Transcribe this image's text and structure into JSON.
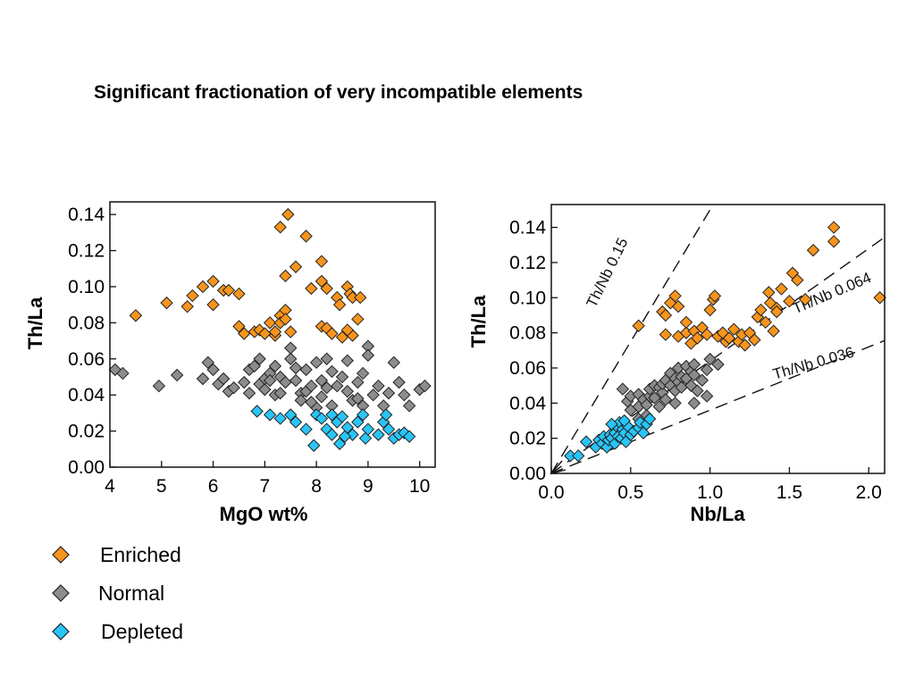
{
  "slide": {
    "title": "Significant fractionation of very incompatible elements"
  },
  "legend": [
    {
      "label": "Enriched",
      "color": "#f7941d"
    },
    {
      "label": "Normal",
      "color": "#8c8c8c"
    },
    {
      "label": "Depleted",
      "color": "#29c5f6"
    }
  ],
  "colors": {
    "Enriched": "#f7941d",
    "Normal": "#8c8c8c",
    "Depleted": "#29c5f6",
    "marker_stroke": "#222222"
  },
  "chart_data": [
    {
      "type": "scatter",
      "title": "",
      "xlabel": "MgO wt%",
      "ylabel": "Th/La",
      "xlim": [
        4,
        10.3
      ],
      "ylim": [
        0.0,
        0.147
      ],
      "xticks": [
        "4",
        "5",
        "6",
        "7",
        "8",
        "9",
        "10"
      ],
      "yticks": [
        "0.00",
        "0.02",
        "0.04",
        "0.06",
        "0.08",
        "0.10",
        "0.12",
        "0.14"
      ],
      "grid": false,
      "series": [
        {
          "name": "Enriched",
          "points": [
            [
              4.5,
              0.084
            ],
            [
              5.1,
              0.091
            ],
            [
              5.5,
              0.089
            ],
            [
              5.6,
              0.095
            ],
            [
              5.8,
              0.1
            ],
            [
              6.0,
              0.103
            ],
            [
              6.0,
              0.09
            ],
            [
              6.2,
              0.098
            ],
            [
              6.3,
              0.098
            ],
            [
              6.5,
              0.096
            ],
            [
              6.5,
              0.078
            ],
            [
              6.6,
              0.074
            ],
            [
              6.8,
              0.075
            ],
            [
              6.9,
              0.076
            ],
            [
              7.0,
              0.074
            ],
            [
              7.1,
              0.08
            ],
            [
              7.2,
              0.073
            ],
            [
              7.2,
              0.075
            ],
            [
              7.3,
              0.084
            ],
            [
              7.3,
              0.08
            ],
            [
              7.4,
              0.087
            ],
            [
              7.4,
              0.082
            ],
            [
              7.5,
              0.075
            ],
            [
              7.4,
              0.106
            ],
            [
              7.6,
              0.111
            ],
            [
              7.3,
              0.133
            ],
            [
              7.45,
              0.14
            ],
            [
              7.8,
              0.128
            ],
            [
              7.9,
              0.099
            ],
            [
              8.1,
              0.114
            ],
            [
              8.1,
              0.103
            ],
            [
              8.2,
              0.099
            ],
            [
              8.1,
              0.078
            ],
            [
              8.2,
              0.077
            ],
            [
              8.3,
              0.074
            ],
            [
              8.4,
              0.094
            ],
            [
              8.45,
              0.09
            ],
            [
              8.5,
              0.072
            ],
            [
              8.6,
              0.1
            ],
            [
              8.65,
              0.096
            ],
            [
              8.7,
              0.094
            ],
            [
              8.7,
              0.073
            ],
            [
              8.8,
              0.082
            ],
            [
              8.85,
              0.094
            ],
            [
              8.6,
              0.076
            ]
          ]
        },
        {
          "name": "Normal",
          "points": [
            [
              4.1,
              0.054
            ],
            [
              4.25,
              0.052
            ],
            [
              4.95,
              0.045
            ],
            [
              5.3,
              0.051
            ],
            [
              5.9,
              0.058
            ],
            [
              5.8,
              0.049
            ],
            [
              6.0,
              0.054
            ],
            [
              6.1,
              0.046
            ],
            [
              6.2,
              0.049
            ],
            [
              6.3,
              0.042
            ],
            [
              6.4,
              0.044
            ],
            [
              6.6,
              0.047
            ],
            [
              6.7,
              0.054
            ],
            [
              6.7,
              0.041
            ],
            [
              6.8,
              0.056
            ],
            [
              6.9,
              0.046
            ],
            [
              6.9,
              0.06
            ],
            [
              7.0,
              0.043
            ],
            [
              7.0,
              0.049
            ],
            [
              7.1,
              0.052
            ],
            [
              7.1,
              0.048
            ],
            [
              7.2,
              0.056
            ],
            [
              7.2,
              0.04
            ],
            [
              7.3,
              0.041
            ],
            [
              7.3,
              0.05
            ],
            [
              7.4,
              0.047
            ],
            [
              7.5,
              0.06
            ],
            [
              7.5,
              0.066
            ],
            [
              7.6,
              0.055
            ],
            [
              7.6,
              0.048
            ],
            [
              7.7,
              0.041
            ],
            [
              7.7,
              0.037
            ],
            [
              7.8,
              0.042
            ],
            [
              7.8,
              0.054
            ],
            [
              7.9,
              0.045
            ],
            [
              8.0,
              0.058
            ],
            [
              8.0,
              0.033
            ],
            [
              8.1,
              0.048
            ],
            [
              8.1,
              0.039
            ],
            [
              8.2,
              0.06
            ],
            [
              8.2,
              0.044
            ],
            [
              8.3,
              0.053
            ],
            [
              8.3,
              0.034
            ],
            [
              8.4,
              0.045
            ],
            [
              8.5,
              0.05
            ],
            [
              8.6,
              0.042
            ],
            [
              8.6,
              0.059
            ],
            [
              8.7,
              0.037
            ],
            [
              8.8,
              0.047
            ],
            [
              8.8,
              0.038
            ],
            [
              8.9,
              0.052
            ],
            [
              9.0,
              0.067
            ],
            [
              9.0,
              0.062
            ],
            [
              9.1,
              0.04
            ],
            [
              9.2,
              0.045
            ],
            [
              9.3,
              0.034
            ],
            [
              9.4,
              0.041
            ],
            [
              9.5,
              0.058
            ],
            [
              9.6,
              0.047
            ],
            [
              9.7,
              0.04
            ],
            [
              9.8,
              0.034
            ],
            [
              10.0,
              0.043
            ],
            [
              10.1,
              0.045
            ],
            [
              8.9,
              0.034
            ],
            [
              7.9,
              0.036
            ]
          ]
        },
        {
          "name": "Depleted",
          "points": [
            [
              6.85,
              0.031
            ],
            [
              7.1,
              0.029
            ],
            [
              7.3,
              0.027
            ],
            [
              7.5,
              0.029
            ],
            [
              7.6,
              0.025
            ],
            [
              7.8,
              0.021
            ],
            [
              7.95,
              0.012
            ],
            [
              8.0,
              0.029
            ],
            [
              8.1,
              0.027
            ],
            [
              8.2,
              0.021
            ],
            [
              8.3,
              0.018
            ],
            [
              8.3,
              0.029
            ],
            [
              8.4,
              0.025
            ],
            [
              8.45,
              0.013
            ],
            [
              8.5,
              0.028
            ],
            [
              8.6,
              0.022
            ],
            [
              8.7,
              0.018
            ],
            [
              8.8,
              0.025
            ],
            [
              8.9,
              0.029
            ],
            [
              8.95,
              0.016
            ],
            [
              9.0,
              0.021
            ],
            [
              9.2,
              0.018
            ],
            [
              9.3,
              0.025
            ],
            [
              9.4,
              0.021
            ],
            [
              9.5,
              0.016
            ],
            [
              9.6,
              0.018
            ],
            [
              9.7,
              0.019
            ],
            [
              9.8,
              0.017
            ],
            [
              9.35,
              0.029
            ],
            [
              8.55,
              0.017
            ]
          ]
        }
      ]
    },
    {
      "type": "scatter",
      "title": "",
      "xlabel": "Nb/La",
      "ylabel": "Th/La",
      "xlim": [
        0.0,
        2.1
      ],
      "ylim": [
        0.0,
        0.153
      ],
      "xticks": [
        "0.0",
        "0.5",
        "1.0",
        "1.5",
        "2.0"
      ],
      "yticks": [
        "0.00",
        "0.02",
        "0.04",
        "0.06",
        "0.08",
        "0.10",
        "0.12",
        "0.14"
      ],
      "grid": false,
      "reference_lines": [
        {
          "label": "Th/Nb 0.15",
          "slope": 0.15
        },
        {
          "label": "Th/Nb 0.064",
          "slope": 0.064
        },
        {
          "label": "Th/Nb 0.036",
          "slope": 0.036
        }
      ],
      "series": [
        {
          "name": "Enriched",
          "points": [
            [
              0.55,
              0.084
            ],
            [
              0.7,
              0.092
            ],
            [
              0.72,
              0.09
            ],
            [
              0.75,
              0.097
            ],
            [
              0.78,
              0.101
            ],
            [
              0.8,
              0.095
            ],
            [
              0.72,
              0.079
            ],
            [
              0.8,
              0.078
            ],
            [
              0.85,
              0.08
            ],
            [
              0.85,
              0.086
            ],
            [
              0.88,
              0.074
            ],
            [
              0.9,
              0.081
            ],
            [
              0.92,
              0.077
            ],
            [
              0.95,
              0.083
            ],
            [
              0.98,
              0.079
            ],
            [
              1.0,
              0.093
            ],
            [
              1.02,
              0.099
            ],
            [
              1.03,
              0.101
            ],
            [
              1.05,
              0.078
            ],
            [
              1.08,
              0.08
            ],
            [
              1.1,
              0.075
            ],
            [
              1.12,
              0.077
            ],
            [
              1.15,
              0.082
            ],
            [
              1.18,
              0.075
            ],
            [
              1.2,
              0.079
            ],
            [
              1.22,
              0.073
            ],
            [
              1.25,
              0.08
            ],
            [
              1.28,
              0.076
            ],
            [
              1.3,
              0.089
            ],
            [
              1.32,
              0.093
            ],
            [
              1.35,
              0.086
            ],
            [
              1.38,
              0.097
            ],
            [
              1.4,
              0.081
            ],
            [
              1.42,
              0.094
            ],
            [
              1.45,
              0.105
            ],
            [
              1.5,
              0.098
            ],
            [
              1.52,
              0.114
            ],
            [
              1.55,
              0.11
            ],
            [
              1.6,
              0.099
            ],
            [
              1.65,
              0.127
            ],
            [
              1.78,
              0.132
            ],
            [
              1.78,
              0.14
            ],
            [
              2.07,
              0.1
            ],
            [
              1.42,
              0.092
            ],
            [
              1.37,
              0.103
            ]
          ]
        },
        {
          "name": "Normal",
          "points": [
            [
              0.45,
              0.048
            ],
            [
              0.48,
              0.041
            ],
            [
              0.5,
              0.044
            ],
            [
              0.5,
              0.036
            ],
            [
              0.55,
              0.038
            ],
            [
              0.55,
              0.045
            ],
            [
              0.58,
              0.042
            ],
            [
              0.6,
              0.039
            ],
            [
              0.62,
              0.044
            ],
            [
              0.62,
              0.048
            ],
            [
              0.65,
              0.05
            ],
            [
              0.65,
              0.043
            ],
            [
              0.68,
              0.049
            ],
            [
              0.7,
              0.046
            ],
            [
              0.7,
              0.051
            ],
            [
              0.72,
              0.053
            ],
            [
              0.72,
              0.042
            ],
            [
              0.75,
              0.05
            ],
            [
              0.75,
              0.057
            ],
            [
              0.78,
              0.054
            ],
            [
              0.78,
              0.047
            ],
            [
              0.8,
              0.06
            ],
            [
              0.8,
              0.052
            ],
            [
              0.82,
              0.055
            ],
            [
              0.82,
              0.049
            ],
            [
              0.85,
              0.061
            ],
            [
              0.85,
              0.054
            ],
            [
              0.88,
              0.058
            ],
            [
              0.88,
              0.05
            ],
            [
              0.9,
              0.062
            ],
            [
              0.9,
              0.056
            ],
            [
              0.92,
              0.047
            ],
            [
              0.95,
              0.053
            ],
            [
              0.98,
              0.059
            ],
            [
              1.0,
              0.065
            ],
            [
              1.05,
              0.062
            ],
            [
              0.78,
              0.04
            ],
            [
              0.6,
              0.033
            ],
            [
              0.55,
              0.031
            ],
            [
              0.9,
              0.04
            ],
            [
              0.98,
              0.044
            ],
            [
              0.68,
              0.038
            ]
          ]
        },
        {
          "name": "Depleted",
          "points": [
            [
              0.12,
              0.01
            ],
            [
              0.17,
              0.01
            ],
            [
              0.22,
              0.018
            ],
            [
              0.28,
              0.015
            ],
            [
              0.3,
              0.019
            ],
            [
              0.32,
              0.017
            ],
            [
              0.33,
              0.021
            ],
            [
              0.35,
              0.015
            ],
            [
              0.36,
              0.019
            ],
            [
              0.37,
              0.022
            ],
            [
              0.38,
              0.02
            ],
            [
              0.4,
              0.017
            ],
            [
              0.4,
              0.023
            ],
            [
              0.41,
              0.027
            ],
            [
              0.42,
              0.021
            ],
            [
              0.43,
              0.029
            ],
            [
              0.44,
              0.02
            ],
            [
              0.45,
              0.025
            ],
            [
              0.46,
              0.023
            ],
            [
              0.47,
              0.018
            ],
            [
              0.48,
              0.027
            ],
            [
              0.5,
              0.022
            ],
            [
              0.52,
              0.024
            ],
            [
              0.55,
              0.026
            ],
            [
              0.56,
              0.029
            ],
            [
              0.58,
              0.023
            ],
            [
              0.6,
              0.028
            ],
            [
              0.62,
              0.031
            ],
            [
              0.38,
              0.028
            ],
            [
              0.46,
              0.03
            ]
          ]
        }
      ]
    }
  ]
}
